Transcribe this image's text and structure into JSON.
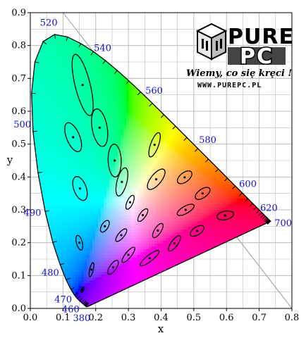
{
  "chart_data": {
    "type": "scatter",
    "title": "",
    "xlabel": "x",
    "ylabel": "y",
    "xlim": [
      0.0,
      0.8
    ],
    "ylim": [
      0.0,
      0.9
    ],
    "x_ticks": [
      "0.0",
      "0.1",
      "0.2",
      "0.3",
      "0.4",
      "0.5",
      "0.6",
      "0.7",
      "0.8"
    ],
    "y_ticks": [
      "0.0",
      "0.1",
      "0.2",
      "0.3",
      "0.4",
      "0.5",
      "0.6",
      "0.7",
      "0.8",
      "0.9"
    ],
    "grid": true,
    "spectral_locus": [
      [
        0.1741,
        0.005
      ],
      [
        0.1738,
        0.0049
      ],
      [
        0.1736,
        0.0049
      ],
      [
        0.1733,
        0.0048
      ],
      [
        0.173,
        0.0048
      ],
      [
        0.1726,
        0.0048
      ],
      [
        0.1721,
        0.0048
      ],
      [
        0.1714,
        0.0051
      ],
      [
        0.1703,
        0.0058
      ],
      [
        0.1689,
        0.0069
      ],
      [
        0.1669,
        0.0086
      ],
      [
        0.1644,
        0.0109
      ],
      [
        0.1611,
        0.0138
      ],
      [
        0.1566,
        0.0177
      ],
      [
        0.151,
        0.0227
      ],
      [
        0.144,
        0.0297
      ],
      [
        0.1355,
        0.0399
      ],
      [
        0.1241,
        0.0578
      ],
      [
        0.1096,
        0.0868
      ],
      [
        0.0913,
        0.1327
      ],
      [
        0.0687,
        0.2007
      ],
      [
        0.0454,
        0.295
      ],
      [
        0.0235,
        0.4127
      ],
      [
        0.0082,
        0.5384
      ],
      [
        0.0039,
        0.6548
      ],
      [
        0.0139,
        0.7502
      ],
      [
        0.0389,
        0.812
      ],
      [
        0.0743,
        0.8338
      ],
      [
        0.1142,
        0.8262
      ],
      [
        0.1547,
        0.8059
      ],
      [
        0.1929,
        0.7816
      ],
      [
        0.2296,
        0.7543
      ],
      [
        0.2658,
        0.7243
      ],
      [
        0.3016,
        0.6923
      ],
      [
        0.3373,
        0.6589
      ],
      [
        0.3731,
        0.6245
      ],
      [
        0.4087,
        0.5896
      ],
      [
        0.4441,
        0.5547
      ],
      [
        0.4788,
        0.5202
      ],
      [
        0.5125,
        0.4866
      ],
      [
        0.5448,
        0.4544
      ],
      [
        0.5752,
        0.4242
      ],
      [
        0.6029,
        0.3965
      ],
      [
        0.627,
        0.3725
      ],
      [
        0.6482,
        0.3514
      ],
      [
        0.6658,
        0.334
      ],
      [
        0.6801,
        0.3197
      ],
      [
        0.6915,
        0.3083
      ],
      [
        0.7006,
        0.2993
      ],
      [
        0.7079,
        0.292
      ],
      [
        0.714,
        0.2859
      ],
      [
        0.719,
        0.2809
      ],
      [
        0.723,
        0.277
      ],
      [
        0.726,
        0.274
      ],
      [
        0.7283,
        0.2717
      ],
      [
        0.73,
        0.27
      ],
      [
        0.7311,
        0.2689
      ],
      [
        0.732,
        0.268
      ],
      [
        0.7327,
        0.2673
      ],
      [
        0.7334,
        0.2666
      ],
      [
        0.734,
        0.266
      ],
      [
        0.7344,
        0.2656
      ],
      [
        0.7346,
        0.2654
      ],
      [
        0.7347,
        0.2653
      ]
    ],
    "wavelength_labels": [
      {
        "text": "380",
        "x": 0.174,
        "y": 0.005
      },
      {
        "text": "460",
        "x": 0.144,
        "y": 0.03
      },
      {
        "text": "470",
        "x": 0.124,
        "y": 0.058
      },
      {
        "text": "480",
        "x": 0.091,
        "y": 0.133
      },
      {
        "text": "490",
        "x": 0.045,
        "y": 0.295
      },
      {
        "text": "500",
        "x": 0.008,
        "y": 0.538
      },
      {
        "text": "520",
        "x": 0.074,
        "y": 0.834
      },
      {
        "text": "540",
        "x": 0.23,
        "y": 0.754
      },
      {
        "text": "560",
        "x": 0.373,
        "y": 0.624
      },
      {
        "text": "580",
        "x": 0.513,
        "y": 0.487
      },
      {
        "text": "600",
        "x": 0.627,
        "y": 0.373
      },
      {
        "text": "620",
        "x": 0.691,
        "y": 0.308
      },
      {
        "text": "700",
        "x": 0.735,
        "y": 0.265
      }
    ],
    "macadam_ellipses": [
      {
        "x": 0.16,
        "y": 0.057,
        "a": 0.00085,
        "b": 0.00035,
        "theta": 62.5
      },
      {
        "x": 0.187,
        "y": 0.118,
        "a": 0.0022,
        "b": 0.00055,
        "theta": 77.0
      },
      {
        "x": 0.253,
        "y": 0.125,
        "a": 0.0025,
        "b": 0.001,
        "theta": 55.5
      },
      {
        "x": 0.15,
        "y": 0.2,
        "a": 0.0023,
        "b": 0.0009,
        "theta": 105.0
      },
      {
        "x": 0.131,
        "y": 0.521,
        "a": 0.0047,
        "b": 0.002,
        "theta": 112.5
      },
      {
        "x": 0.212,
        "y": 0.55,
        "a": 0.0058,
        "b": 0.0023,
        "theta": 100.0
      },
      {
        "x": 0.258,
        "y": 0.45,
        "a": 0.005,
        "b": 0.002,
        "theta": 92.0
      },
      {
        "x": 0.152,
        "y": 0.365,
        "a": 0.0038,
        "b": 0.0019,
        "theta": 110.0
      },
      {
        "x": 0.28,
        "y": 0.385,
        "a": 0.0044,
        "b": 0.0015,
        "theta": 75.5
      },
      {
        "x": 0.38,
        "y": 0.498,
        "a": 0.0039,
        "b": 0.0012,
        "theta": 70.0
      },
      {
        "x": 0.16,
        "y": 0.68,
        "a": 0.0096,
        "b": 0.0023,
        "theta": 104.0
      },
      {
        "x": 0.228,
        "y": 0.25,
        "a": 0.002,
        "b": 0.001,
        "theta": 58.0
      },
      {
        "x": 0.305,
        "y": 0.323,
        "a": 0.0023,
        "b": 0.0009,
        "theta": 65.0
      },
      {
        "x": 0.385,
        "y": 0.393,
        "a": 0.0038,
        "b": 0.0016,
        "theta": 51.0
      },
      {
        "x": 0.472,
        "y": 0.399,
        "a": 0.0026,
        "b": 0.0014,
        "theta": 38.0
      },
      {
        "x": 0.527,
        "y": 0.35,
        "a": 0.0026,
        "b": 0.0013,
        "theta": 35.0
      },
      {
        "x": 0.475,
        "y": 0.3,
        "a": 0.0029,
        "b": 0.0011,
        "theta": 29.5
      },
      {
        "x": 0.51,
        "y": 0.236,
        "a": 0.0024,
        "b": 0.0012,
        "theta": 33.0
      },
      {
        "x": 0.596,
        "y": 0.283,
        "a": 0.0026,
        "b": 0.0013,
        "theta": 11.5
      },
      {
        "x": 0.344,
        "y": 0.284,
        "a": 0.0023,
        "b": 0.0009,
        "theta": 54.0
      },
      {
        "x": 0.39,
        "y": 0.237,
        "a": 0.0025,
        "b": 0.001,
        "theta": 57.0
      },
      {
        "x": 0.441,
        "y": 0.198,
        "a": 0.0028,
        "b": 0.001,
        "theta": 53.5
      },
      {
        "x": 0.278,
        "y": 0.223,
        "a": 0.0024,
        "b": 0.0009,
        "theta": 50.0
      },
      {
        "x": 0.3,
        "y": 0.163,
        "a": 0.0029,
        "b": 0.0009,
        "theta": 51.0
      },
      {
        "x": 0.365,
        "y": 0.153,
        "a": 0.0036,
        "b": 0.00095,
        "theta": 38.0
      }
    ],
    "ellipse_scale": 10,
    "colors": {
      "grid": "#bbbbbb",
      "wavelength_label": "#1010c8",
      "curve": "#000000"
    }
  },
  "watermark": {
    "brand_top": "PURE",
    "brand_bottom": "PC",
    "slogan": "Wiemy, co się kręci !",
    "url": "WWW.PUREPC.PL"
  }
}
